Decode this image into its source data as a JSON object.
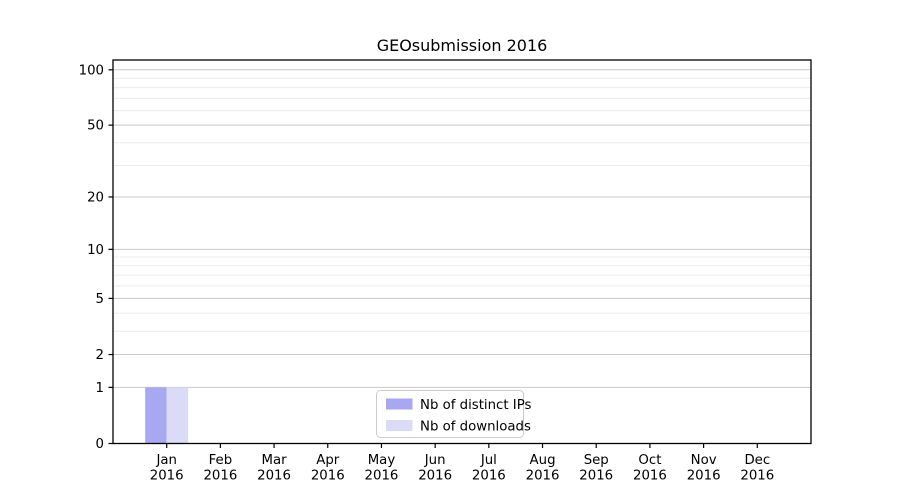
{
  "chart_data": {
    "type": "bar",
    "title": "GEOsubmission 2016",
    "categories": [
      "Jan",
      "Feb",
      "Mar",
      "Apr",
      "May",
      "Jun",
      "Jul",
      "Aug",
      "Sep",
      "Oct",
      "Nov",
      "Dec"
    ],
    "category_year": "2016",
    "series": [
      {
        "name": "Nb of distinct IPs",
        "color": "#a7a7f2",
        "values": [
          1,
          0,
          0,
          0,
          0,
          0,
          0,
          0,
          0,
          0,
          0,
          0
        ]
      },
      {
        "name": "Nb of downloads",
        "color": "#dbdbf8",
        "values": [
          1,
          0,
          0,
          0,
          0,
          0,
          0,
          0,
          0,
          0,
          0,
          0
        ]
      }
    ],
    "xlabel": "",
    "ylabel": "",
    "yscale": "log1p",
    "ylim": [
      0,
      113
    ],
    "y_major_ticks": [
      0,
      1,
      2,
      5,
      10,
      20,
      50,
      100
    ],
    "y_minor_gridlines": [
      3,
      4,
      6,
      7,
      8,
      9,
      30,
      40,
      60,
      70,
      80,
      90
    ],
    "grid": true,
    "legend_position": "lower center",
    "bar_width_fraction": 0.4,
    "colors": {
      "major_grid": "#c9c9c9",
      "minor_grid": "#ebebeb",
      "axis": "#000000",
      "legend_border": "#cccccc",
      "legend_background": "#ffffff",
      "background": "#ffffff"
    }
  }
}
